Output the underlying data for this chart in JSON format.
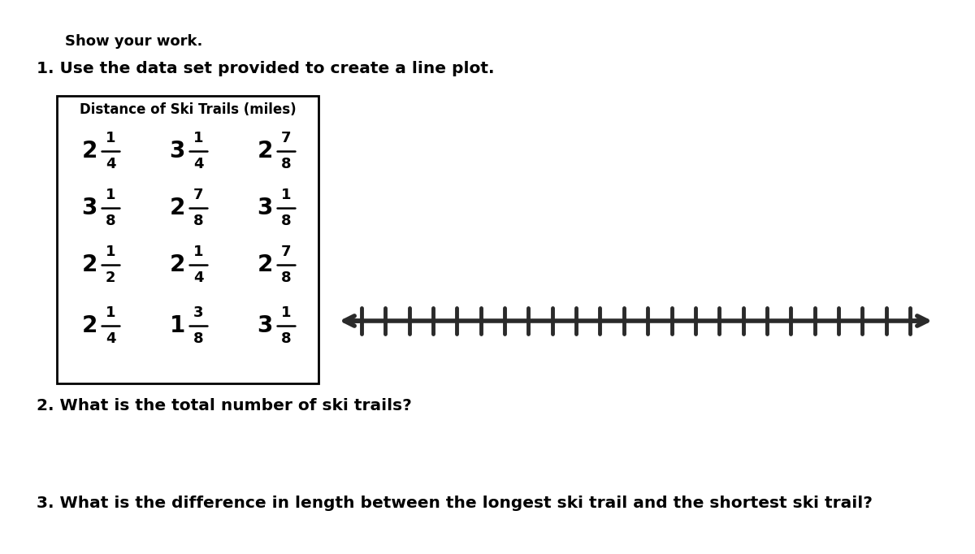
{
  "show_your_work": "Show your work.",
  "instruction1": "1. Use the data set provided to create a line plot.",
  "table_title": "Distance of Ski Trails (miles)",
  "table_display": [
    [
      [
        "2",
        "1",
        "4"
      ],
      [
        "3",
        "1",
        "4"
      ],
      [
        "2",
        "7",
        "8"
      ]
    ],
    [
      [
        "3",
        "1",
        "8"
      ],
      [
        "2",
        "7",
        "8"
      ],
      [
        "3",
        "1",
        "8"
      ]
    ],
    [
      [
        "2",
        "1",
        "2"
      ],
      [
        "2",
        "1",
        "4"
      ],
      [
        "2",
        "7",
        "8"
      ]
    ],
    [
      [
        "2",
        "1",
        "4"
      ],
      [
        "1",
        "3",
        "8"
      ],
      [
        "3",
        "1",
        "8"
      ]
    ]
  ],
  "instruction2": "2. What is the total number of ski trails?",
  "instruction3": "3. What is the difference in length between the longest ski trail and the shortest ski trail?",
  "num_ticks": 24,
  "background_color": "#ffffff",
  "text_color": "#000000",
  "arrow_color": "#2a2a2a",
  "table_border_color": "#000000"
}
